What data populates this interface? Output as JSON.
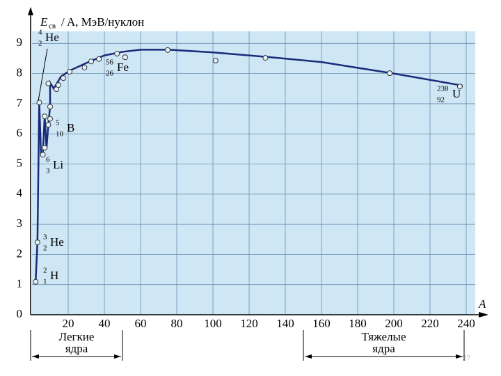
{
  "chart_data": {
    "type": "scatter",
    "y_label": {
      "symbol": "E",
      "sub": "св",
      "rest": "/ A, МэВ/нуклон"
    },
    "x_label": "A",
    "xlim": [
      0,
      245
    ],
    "ylim": [
      0,
      9.4
    ],
    "xticks": [
      20,
      40,
      60,
      80,
      100,
      120,
      140,
      160,
      180,
      200,
      220,
      240
    ],
    "yticks": [
      0,
      1,
      2,
      3,
      4,
      5,
      6,
      7,
      8,
      9
    ],
    "grid": true,
    "color": "#1a2a7a",
    "background": "#cfe6f5",
    "points": {
      "x": [
        2,
        3,
        4,
        6,
        7,
        7,
        9,
        10,
        10,
        9,
        13.5,
        14.6,
        17.3,
        20.8,
        29,
        32.7,
        37,
        47,
        51.5,
        75,
        101.5,
        129,
        197.7,
        236.5
      ],
      "y": [
        1.09,
        2.4,
        7.04,
        5.31,
        5.54,
        6.58,
        6.3,
        6.5,
        6.9,
        7.67,
        7.48,
        7.62,
        7.85,
        8.06,
        8.2,
        8.4,
        8.48,
        8.66,
        8.54,
        8.78,
        8.43,
        8.52,
        8.01,
        7.57
      ]
    },
    "curve": {
      "x": [
        2,
        3,
        4,
        5,
        6,
        7,
        8,
        9,
        10,
        10,
        12,
        14,
        16,
        21,
        30,
        40,
        50,
        60,
        76,
        100,
        130,
        160,
        200,
        238
      ],
      "y": [
        1.1,
        2.4,
        7.07,
        5.3,
        5.33,
        6.6,
        5.5,
        6.3,
        6.9,
        7.7,
        7.5,
        7.7,
        7.9,
        8.1,
        8.35,
        8.6,
        8.72,
        8.79,
        8.79,
        8.7,
        8.55,
        8.38,
        8.0,
        7.6
      ]
    },
    "annotations": [
      {
        "mass": "4",
        "z": "2",
        "symbol": "He"
      },
      {
        "mass": "56",
        "z": "26",
        "symbol": "Fe"
      },
      {
        "mass": "5",
        "z": "10",
        "symbol": "B"
      },
      {
        "mass": "6",
        "z": "3",
        "symbol": "Li"
      },
      {
        "mass": "3",
        "z": "2",
        "symbol": "He"
      },
      {
        "mass": "2",
        "z": "1",
        "symbol": "H"
      },
      {
        "mass": "238",
        "z": "92",
        "symbol": "U"
      }
    ],
    "groups": [
      "Легкие ядра",
      "Тяжелые ядра"
    ],
    "page_number": "27"
  }
}
